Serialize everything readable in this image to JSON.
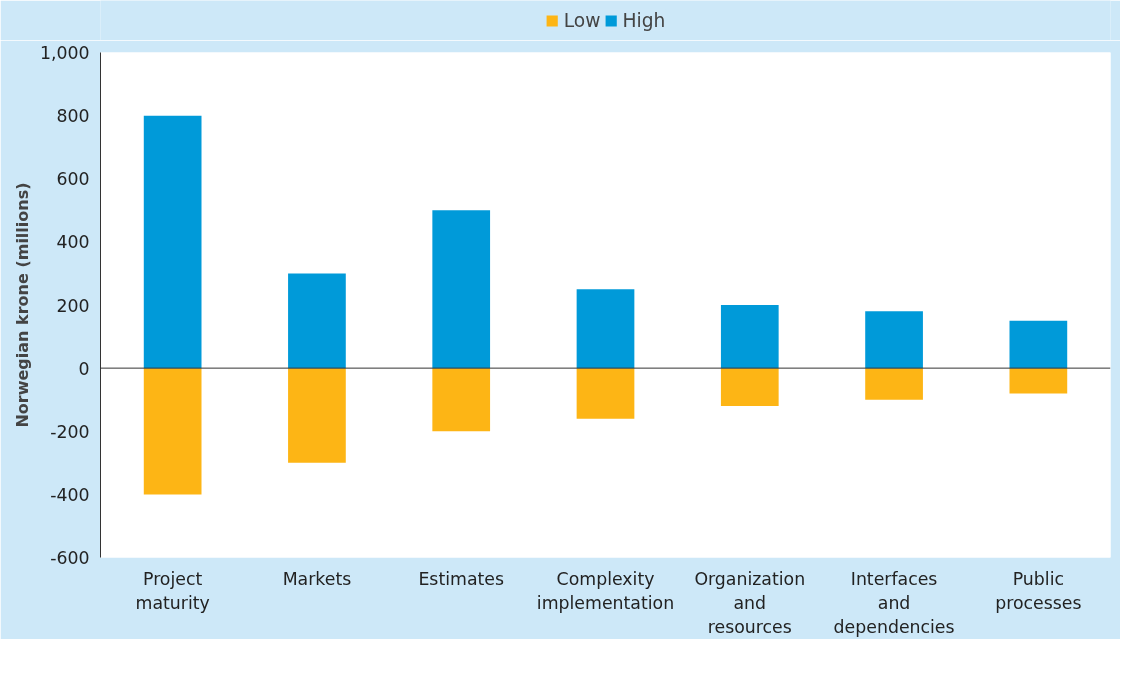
{
  "chart_data": {
    "type": "bar",
    "stacked": true,
    "ylabel": "Norwegian krone (millions)",
    "categories": [
      "Project maturity",
      "Markets",
      "Estimates",
      "Complexity implementation",
      "Organization and resources",
      "Interfaces and dependencies",
      "Public processes"
    ],
    "series": [
      {
        "name": "Low",
        "color": "#fdb515",
        "values": [
          -400,
          -300,
          -200,
          -160,
          -120,
          -100,
          -80
        ]
      },
      {
        "name": "High",
        "color": "#009ad9",
        "values": [
          800,
          300,
          500,
          250,
          200,
          180,
          150
        ]
      }
    ],
    "ylim": [
      -600,
      1000
    ],
    "yticks": [
      {
        "value": -600,
        "label": "-600"
      },
      {
        "value": -400,
        "label": "-400"
      },
      {
        "value": -200,
        "label": "-200"
      },
      0,
      200,
      400,
      600,
      800,
      {
        "value": 1000,
        "label": "1,000"
      }
    ],
    "ref_lines": [
      {
        "axis": "y",
        "value": 0,
        "color": "#333333"
      }
    ],
    "grid": false,
    "legend": "top"
  }
}
